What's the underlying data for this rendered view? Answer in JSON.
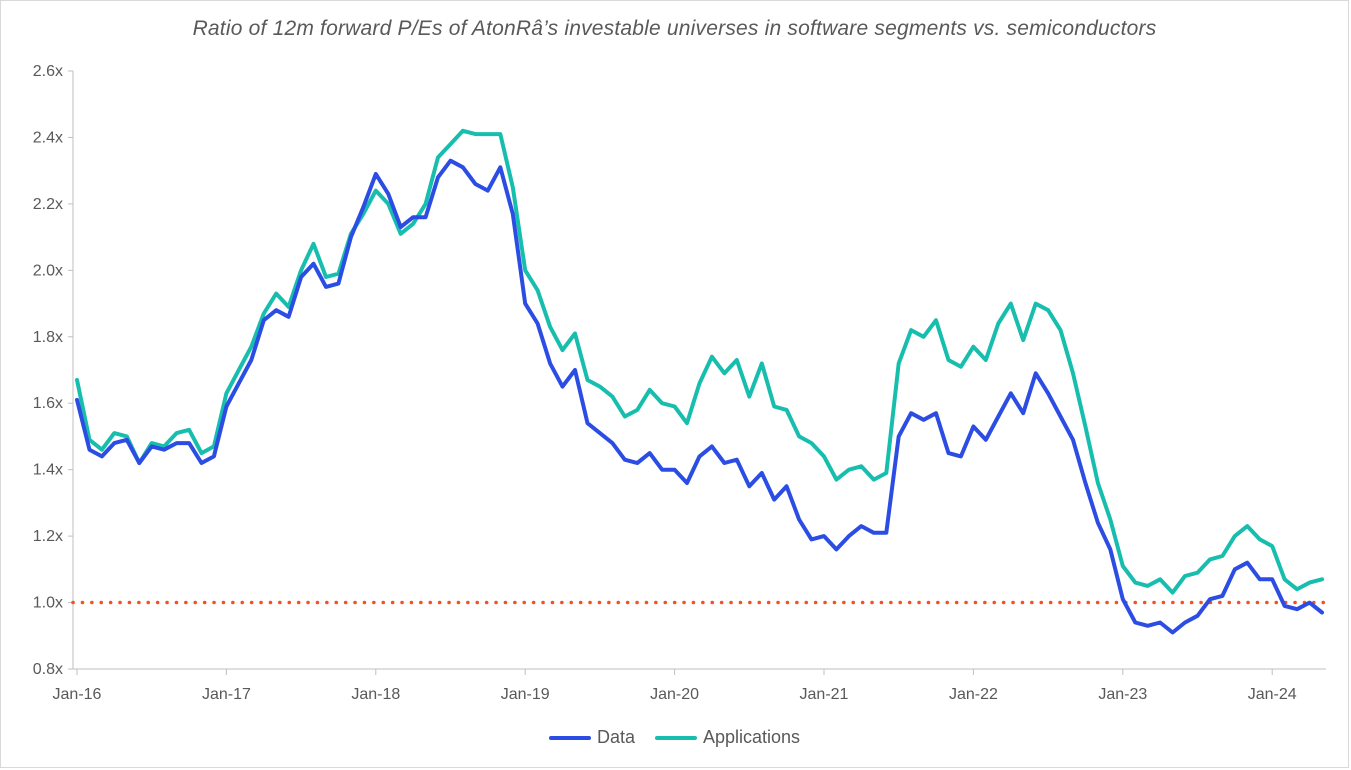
{
  "chart_data": {
    "type": "line",
    "title": "Ratio of 12m forward P/Es of AtonRâ’s investable universes in software segments vs. semiconductors",
    "xlabel": "",
    "ylabel": "",
    "x_start": "Jan-16",
    "x_tick_labels": [
      "Jan-16",
      "Jan-17",
      "Jan-18",
      "Jan-19",
      "Jan-20",
      "Jan-21",
      "Jan-22",
      "Jan-23",
      "Jan-24"
    ],
    "y_tick_labels": [
      "0.8x",
      "1.0x",
      "1.2x",
      "1.4x",
      "1.6x",
      "1.8x",
      "2.0x",
      "2.2x",
      "2.4x",
      "2.6x"
    ],
    "ylim": [
      0.8,
      2.6
    ],
    "grid": false,
    "legend_position": "bottom",
    "reference_line": {
      "y": 1.0,
      "style": "dotted",
      "color": "#F4511E"
    },
    "series": [
      {
        "name": "Data",
        "color": "#2B4DE3",
        "values": [
          1.61,
          1.46,
          1.44,
          1.48,
          1.49,
          1.42,
          1.47,
          1.46,
          1.48,
          1.48,
          1.42,
          1.44,
          1.59,
          1.66,
          1.73,
          1.85,
          1.88,
          1.86,
          1.98,
          2.02,
          1.95,
          1.96,
          2.1,
          2.19,
          2.29,
          2.23,
          2.13,
          2.16,
          2.16,
          2.28,
          2.33,
          2.31,
          2.26,
          2.24,
          2.31,
          2.17,
          1.9,
          1.84,
          1.72,
          1.65,
          1.7,
          1.54,
          1.51,
          1.48,
          1.43,
          1.42,
          1.45,
          1.4,
          1.4,
          1.36,
          1.44,
          1.47,
          1.42,
          1.43,
          1.35,
          1.39,
          1.31,
          1.35,
          1.25,
          1.19,
          1.2,
          1.16,
          1.2,
          1.23,
          1.21,
          1.21,
          1.5,
          1.57,
          1.55,
          1.57,
          1.45,
          1.44,
          1.53,
          1.49,
          1.56,
          1.63,
          1.57,
          1.69,
          1.63,
          1.56,
          1.49,
          1.36,
          1.24,
          1.16,
          1.01,
          0.94,
          0.93,
          0.94,
          0.91,
          0.94,
          0.96,
          1.01,
          1.02,
          1.1,
          1.12,
          1.07,
          1.07,
          0.99,
          0.98,
          1.0,
          0.97
        ]
      },
      {
        "name": "Applications",
        "color": "#17BEAE",
        "values": [
          1.67,
          1.49,
          1.46,
          1.51,
          1.5,
          1.42,
          1.48,
          1.47,
          1.51,
          1.52,
          1.45,
          1.47,
          1.63,
          1.7,
          1.77,
          1.87,
          1.93,
          1.89,
          2.0,
          2.08,
          1.98,
          1.99,
          2.11,
          2.17,
          2.24,
          2.2,
          2.11,
          2.14,
          2.2,
          2.34,
          2.38,
          2.42,
          2.41,
          2.41,
          2.41,
          2.25,
          2.0,
          1.94,
          1.83,
          1.76,
          1.81,
          1.67,
          1.65,
          1.62,
          1.56,
          1.58,
          1.64,
          1.6,
          1.59,
          1.54,
          1.66,
          1.74,
          1.69,
          1.73,
          1.62,
          1.72,
          1.59,
          1.58,
          1.5,
          1.48,
          1.44,
          1.37,
          1.4,
          1.41,
          1.37,
          1.39,
          1.72,
          1.82,
          1.8,
          1.85,
          1.73,
          1.71,
          1.77,
          1.73,
          1.84,
          1.9,
          1.79,
          1.9,
          1.88,
          1.82,
          1.69,
          1.53,
          1.36,
          1.25,
          1.11,
          1.06,
          1.05,
          1.07,
          1.03,
          1.08,
          1.09,
          1.13,
          1.14,
          1.2,
          1.23,
          1.19,
          1.17,
          1.07,
          1.04,
          1.06,
          1.07
        ]
      }
    ]
  }
}
